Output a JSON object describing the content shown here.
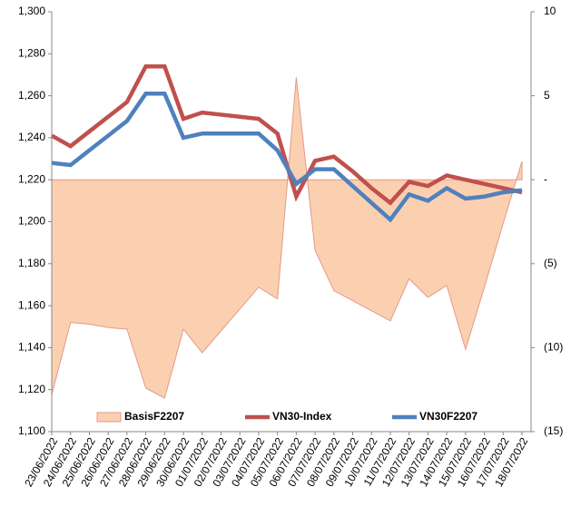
{
  "chart_data": {
    "type": "line",
    "categories": [
      "23/06/2022",
      "24/06/2022",
      "25/06/2022",
      "26/06/2022",
      "27/06/2022",
      "28/06/2022",
      "29/06/2022",
      "30/06/2022",
      "01/07/2022",
      "02/07/2022",
      "03/07/2022",
      "04/07/2022",
      "05/07/2022",
      "06/07/2022",
      "07/07/2022",
      "08/07/2022",
      "09/07/2022",
      "10/07/2022",
      "11/07/2022",
      "12/07/2022",
      "13/07/2022",
      "14/07/2022",
      "15/07/2022",
      "16/07/2022",
      "17/07/2022",
      "18/07/2022"
    ],
    "series": [
      {
        "name": "BasisF2207",
        "type": "area",
        "axis": "y2",
        "color": "#fbd0b0",
        "edge_color": "#e3988a",
        "values": [
          -12.8,
          -8.5,
          -8.6,
          -8.8,
          -8.9,
          -12.4,
          -13.0,
          -8.9,
          -10.3,
          -9.0,
          -7.7,
          -6.4,
          -7.1,
          6.1,
          -4.2,
          -6.6,
          -7.2,
          -7.8,
          -8.4,
          -5.9,
          -7.0,
          -6.3,
          -10.1,
          -6.4,
          -2.6,
          1.1
        ]
      },
      {
        "name": "VN30-Index",
        "type": "line",
        "color": "#c0504d",
        "values": [
          1241,
          1236,
          1243,
          1250,
          1257,
          1274,
          1274,
          1249,
          1252,
          1251,
          1250,
          1249,
          1242,
          1212,
          1229,
          1231,
          1224,
          1216,
          1209,
          1219,
          1217,
          1222,
          1220,
          1218,
          1216,
          1214
        ]
      },
      {
        "name": "VN30F2207",
        "type": "line",
        "color": "#4f81bd",
        "values": [
          1228,
          1227,
          1234,
          1241,
          1248,
          1261,
          1261,
          1240,
          1242,
          1242,
          1242,
          1242,
          1234,
          1218,
          1225,
          1225,
          1217,
          1209,
          1201,
          1213,
          1210,
          1216,
          1211,
          1212,
          1214,
          1215
        ]
      }
    ],
    "ylim": [
      1100,
      1300
    ],
    "yticks": [
      {
        "value": 1100,
        "label": "1,100"
      },
      {
        "value": 1120,
        "label": "1,120"
      },
      {
        "value": 1140,
        "label": "1,140"
      },
      {
        "value": 1160,
        "label": "1,160"
      },
      {
        "value": 1180,
        "label": "1,180"
      },
      {
        "value": 1200,
        "label": "1,200"
      },
      {
        "value": 1220,
        "label": "1,220"
      },
      {
        "value": 1240,
        "label": "1,240"
      },
      {
        "value": 1260,
        "label": "1,260"
      },
      {
        "value": 1280,
        "label": "1,280"
      },
      {
        "value": 1300,
        "label": "1,300"
      }
    ],
    "y2lim": [
      -15,
      10
    ],
    "y2ticks": [
      10,
      5,
      {
        "value": 0,
        "label": "-"
      },
      {
        "value": -5,
        "label": "(5)"
      },
      {
        "value": -10,
        "label": "(10)"
      },
      {
        "value": -15,
        "label": "(15)"
      }
    ],
    "legend": "bottom"
  }
}
